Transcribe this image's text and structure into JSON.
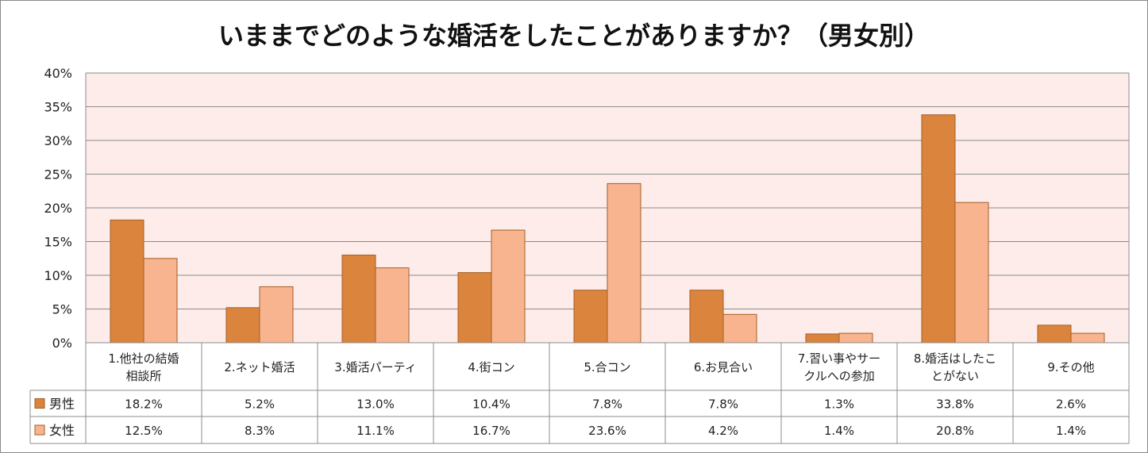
{
  "chart_data": {
    "type": "bar",
    "title": "いままでどのような婚活をしたことがありますか？（男女別）",
    "xlabel": "",
    "ylabel": "",
    "ylim": [
      0,
      40
    ],
    "yticks": [
      "0%",
      "5%",
      "10%",
      "15%",
      "20%",
      "25%",
      "30%",
      "35%",
      "40%"
    ],
    "grid": true,
    "legend": "data-table-left",
    "categories": [
      [
        "1.他社の結婚",
        "相談所"
      ],
      [
        "2.ネット婚活"
      ],
      [
        "3.婚活パーティ"
      ],
      [
        "4.街コン"
      ],
      [
        "5.合コン"
      ],
      [
        "6.お見合い"
      ],
      [
        "7.習い事やサー",
        "クルへの参加"
      ],
      [
        "8.婚活はしたこ",
        "とがない"
      ],
      [
        "9.その他"
      ]
    ],
    "series": [
      {
        "name": "男性",
        "color": "#DA843E",
        "values": [
          18.2,
          5.2,
          13.0,
          10.4,
          7.8,
          7.8,
          1.3,
          33.8,
          2.6
        ],
        "labels": [
          "18.2%",
          "5.2%",
          "13.0%",
          "10.4%",
          "7.8%",
          "7.8%",
          "1.3%",
          "33.8%",
          "2.6%"
        ]
      },
      {
        "name": "女性",
        "color": "#F7B48E",
        "values": [
          12.5,
          8.3,
          11.1,
          16.7,
          23.6,
          4.2,
          1.4,
          20.8,
          1.4
        ],
        "labels": [
          "12.5%",
          "8.3%",
          "11.1%",
          "16.7%",
          "23.6%",
          "4.2%",
          "1.4%",
          "20.8%",
          "1.4%"
        ]
      }
    ],
    "colors": {
      "plot_background": "#FDECEA",
      "gridline": "#8C8C8C",
      "bar_border": "#A65E24",
      "table_border": "#8C8C8C"
    }
  }
}
